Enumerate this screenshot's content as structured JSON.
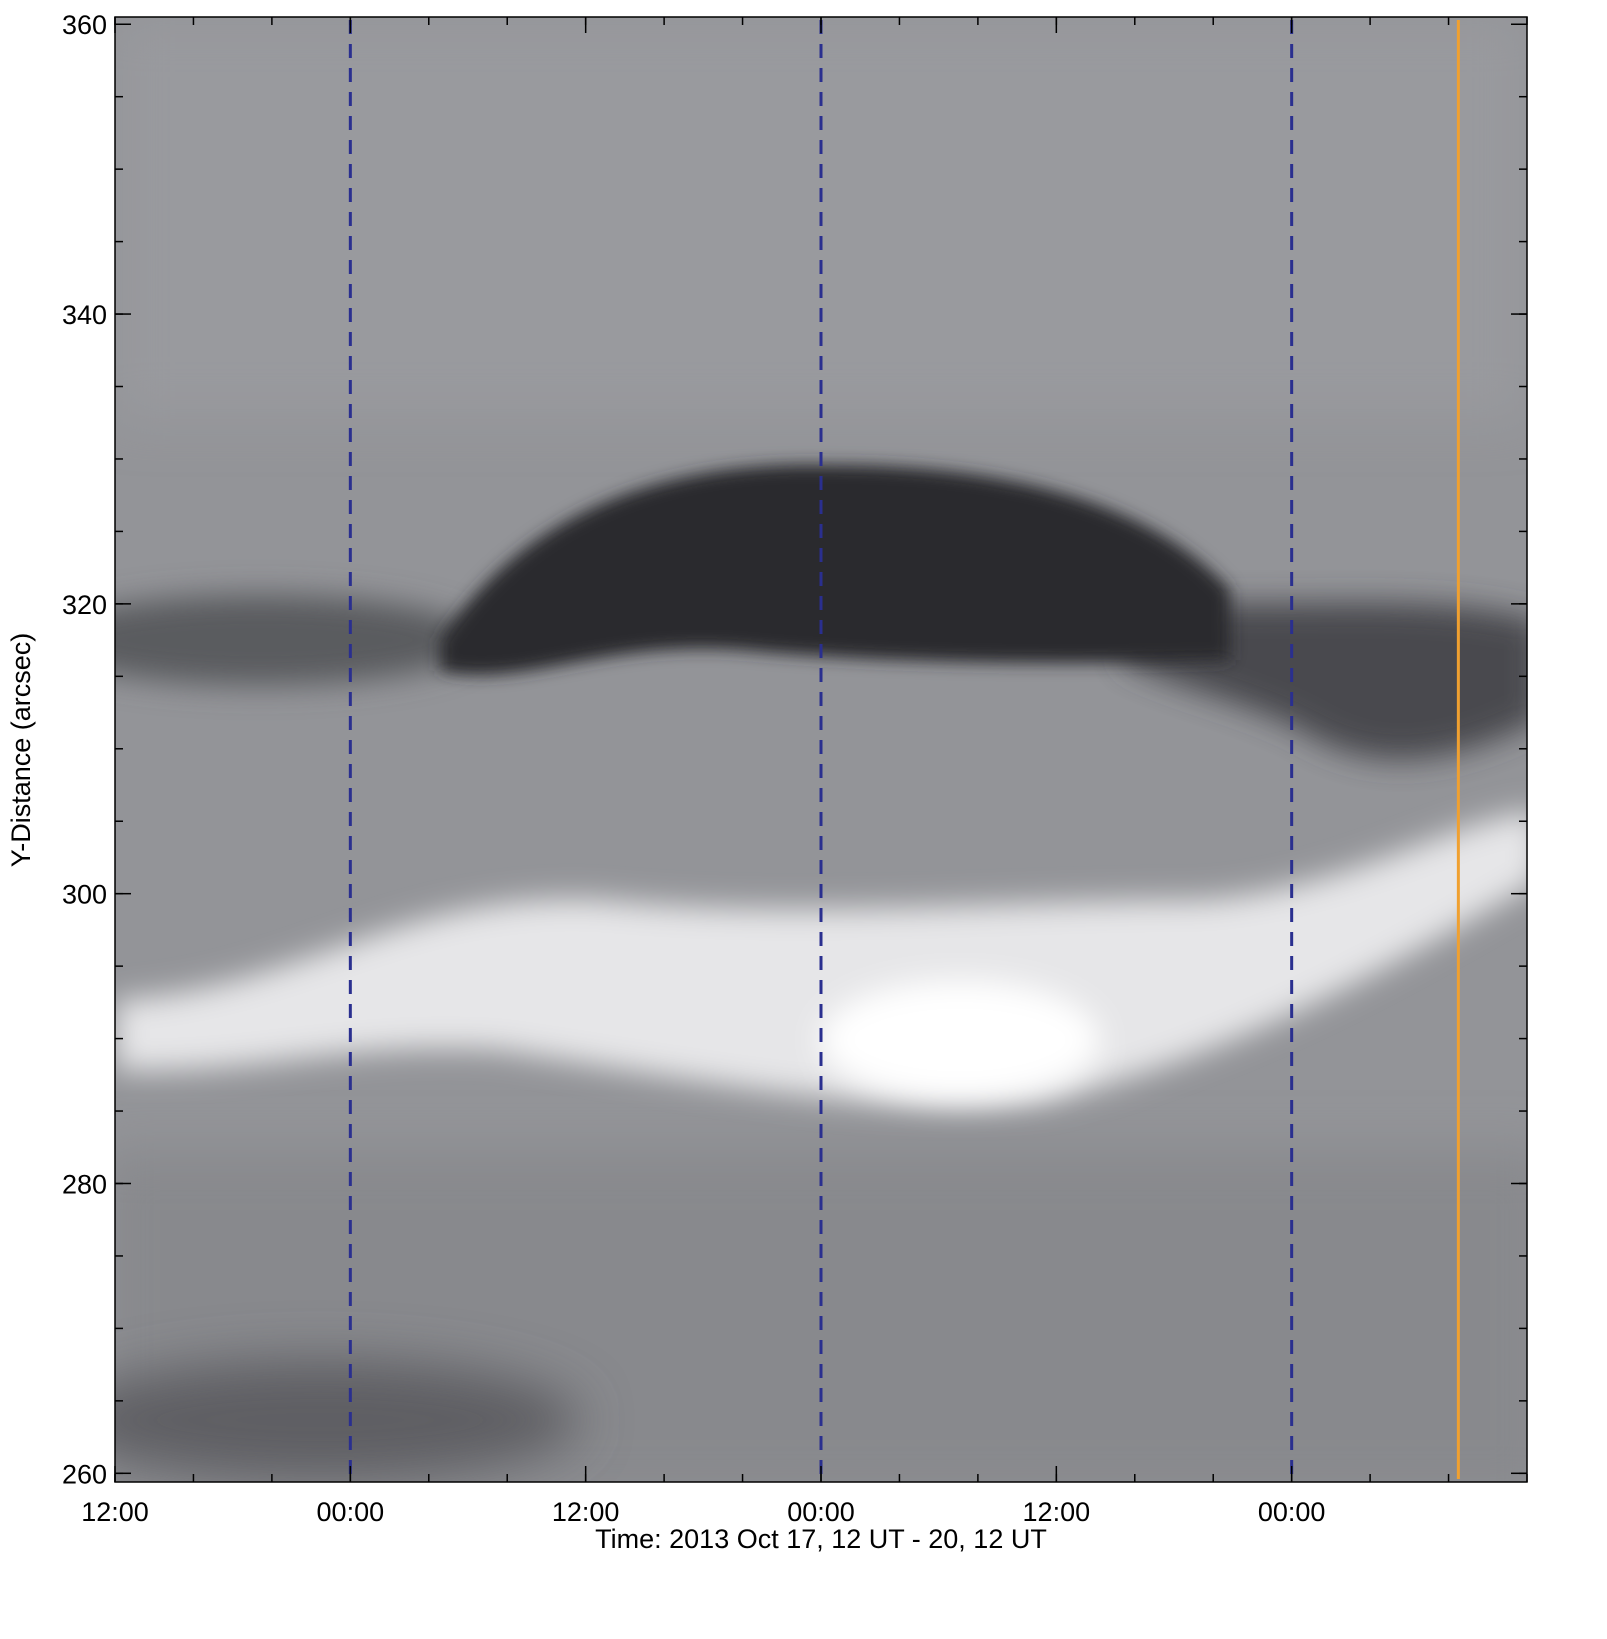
{
  "chart_data": {
    "type": "image",
    "xlabel": "Time: 2013 Oct 17, 12 UT - 20, 12 UT",
    "ylabel": "Y-Distance (arcsec)",
    "xlim": [
      0,
      72
    ],
    "xticks": [
      {
        "value": 0,
        "label": "12:00"
      },
      {
        "value": 12,
        "label": "00:00"
      },
      {
        "value": 24,
        "label": "12:00"
      },
      {
        "value": 36,
        "label": "00:00"
      },
      {
        "value": 48,
        "label": "12:00"
      },
      {
        "value": 60,
        "label": "00:00"
      }
    ],
    "minor_xtick_step": 4,
    "ylim": [
      259.4,
      360.5
    ],
    "yticks": [
      260,
      280,
      300,
      320,
      340,
      360
    ],
    "minor_ytick_step": 5,
    "vlines": [
      {
        "x": 12,
        "color": "#2a2f8f",
        "style": "dashed"
      },
      {
        "x": 36,
        "color": "#2a2f8f",
        "style": "dashed"
      },
      {
        "x": 60,
        "color": "#2a2f8f",
        "style": "dashed"
      },
      {
        "x": 68.5,
        "color": "#f0a030",
        "style": "solid"
      }
    ]
  }
}
